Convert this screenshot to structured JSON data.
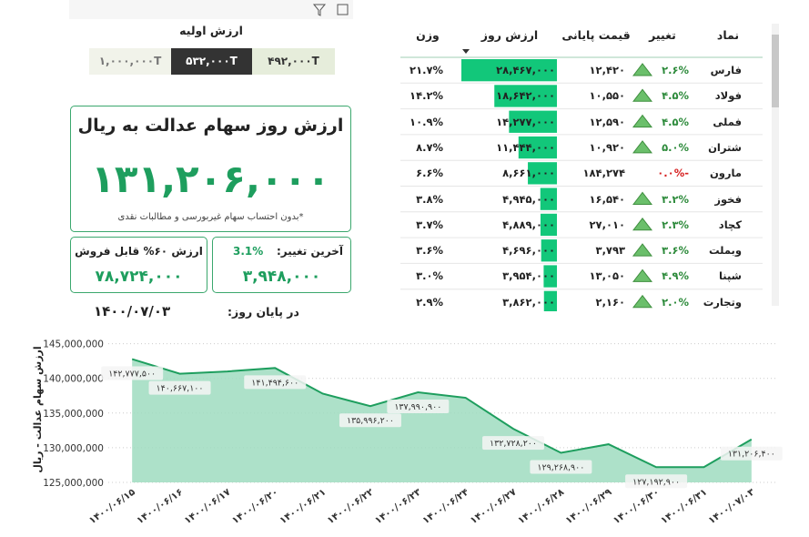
{
  "header": {
    "initial_value_title": "ارزش اولیه",
    "buttons": [
      "۱,۰۰۰,۰۰۰T",
      "۵۳۲,۰۰۰T",
      "۴۹۲,۰۰۰T"
    ]
  },
  "main_card": {
    "title": "ارزش روز سهام عدالت به ریال",
    "value": "۱۳۱,۲۰۶,۰۰۰",
    "note": "*بدون احتساب سهام غیربورسی و مطالبات نقدی"
  },
  "sellable_card": {
    "title": "ارزش ۶۰% قابل فروش",
    "value": "۷۸,۷۲۴,۰۰۰"
  },
  "change_card": {
    "title": "آخرین تغییر:",
    "percent": "3.1%",
    "value": "۳,۹۴۸,۰۰۰"
  },
  "end_of_day": {
    "label": "در پایان روز:",
    "date": "۱۴۰۰/۰۷/۰۳"
  },
  "table": {
    "columns": [
      "نماد",
      "تغییر",
      "قیمت پایانی",
      "ارزش روز",
      "وزن"
    ],
    "rows": [
      [
        "فارس",
        "۲.۶%",
        "۱۲,۴۲۰",
        {
          "value": 28467000,
          "label": "۲۸,۴۶۷,۰۰۰"
        },
        "۲۱.۷%"
      ],
      [
        "فولاد",
        "۴.۵%",
        "۱۰,۵۵۰",
        {
          "value": 18642000,
          "label": "۱۸,۶۴۲,۰۰۰"
        },
        "۱۴.۲%"
      ],
      [
        "فملی",
        "۴.۵%",
        "۱۲,۵۹۰",
        {
          "value": 14277000,
          "label": "۱۴,۲۷۷,۰۰۰"
        },
        "۱۰.۹%"
      ],
      [
        "شتران",
        "۵.۰%",
        "۱۰,۹۲۰",
        {
          "value": 11444000,
          "label": "۱۱,۴۴۴,۰۰۰"
        },
        "۸.۷%"
      ],
      [
        "مارون",
        "-۰.۰%",
        "۱۸۴,۲۷۴",
        {
          "value": 8661000,
          "label": "۸,۶۶۱,۰۰۰"
        },
        "۶.۶%"
      ],
      [
        "فخوز",
        "۳.۲%",
        "۱۶,۵۴۰",
        {
          "value": 4945000,
          "label": "۴,۹۴۵,۰۰۰"
        },
        "۳.۸%"
      ],
      [
        "کچاد",
        "۲.۳%",
        "۲۷,۰۱۰",
        {
          "value": 4889000,
          "label": "۴,۸۸۹,۰۰۰"
        },
        "۳.۷%"
      ],
      [
        "وبملت",
        "۳.۶%",
        "۳,۷۹۳",
        {
          "value": 4696000,
          "label": "۴,۶۹۶,۰۰۰"
        },
        "۳.۶%"
      ],
      [
        "شپنا",
        "۴.۹%",
        "۱۳,۰۵۰",
        {
          "value": 3954000,
          "label": "۳,۹۵۴,۰۰۰"
        },
        "۳.۰%"
      ],
      [
        "وتجارت",
        "۲.۰%",
        "۲,۱۶۰",
        {
          "value": 3862000,
          "label": "۳,۸۶۲,۰۰۰"
        },
        "۲.۹%"
      ]
    ]
  },
  "chart_data": {
    "type": "area",
    "y_label": "ارزش سهام عدالت - ریال",
    "categories": [
      "۱۴۰۰/۰۶/۱۵",
      "۱۴۰۰/۰۶/۱۶",
      "۱۴۰۰/۰۶/۱۷",
      "۱۴۰۰/۰۶/۲۰",
      "۱۴۰۰/۰۶/۲۱",
      "۱۴۰۰/۰۶/۲۲",
      "۱۴۰۰/۰۶/۲۳",
      "۱۴۰۰/۰۶/۲۴",
      "۱۴۰۰/۰۶/۲۷",
      "۱۴۰۰/۰۶/۲۸",
      "۱۴۰۰/۰۶/۲۹",
      "۱۴۰۰/۰۶/۳۰",
      "۱۴۰۰/۰۶/۳۱",
      "۱۴۰۰/۰۷/۰۳"
    ],
    "values": [
      142777500,
      140667100,
      141000000,
      141494600,
      137800000,
      135996200,
      137990900,
      137200000,
      132728200,
      129268900,
      130500000,
      127192900,
      127200000,
      131206400
    ],
    "value_labels": [
      "۱۴۲,۷۷۷,۵۰۰",
      "۱۴۰,۶۶۷,۱۰۰",
      null,
      "۱۴۱,۴۹۴,۶۰۰",
      null,
      "۱۳۵,۹۹۶,۲۰۰",
      "۱۳۷,۹۹۰,۹۰۰",
      null,
      "۱۳۲,۷۲۸,۲۰۰",
      "۱۲۹,۲۶۸,۹۰۰",
      null,
      "۱۲۷,۱۹۲,۹۰۰",
      null,
      "۱۳۱,۲۰۶,۴۰۰"
    ],
    "color": "#1e9e5e",
    "fill": "#9fdcbf",
    "ylim": [
      125000000,
      146000000
    ],
    "yticks": [
      {
        "value": 125000000,
        "label": "125,000,000"
      },
      {
        "value": 130000000,
        "label": "130,000,000"
      },
      {
        "value": 135000000,
        "label": "135,000,000"
      },
      {
        "value": 140000000,
        "label": "140,000,000"
      },
      {
        "value": 145000000,
        "label": "145,000,000"
      }
    ],
    "grid": true
  }
}
